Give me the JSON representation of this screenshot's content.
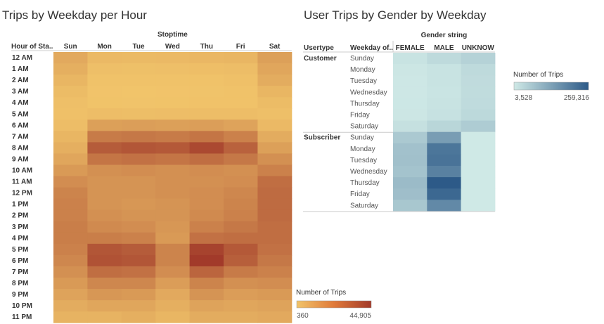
{
  "chart_data": [
    {
      "type": "heatmap",
      "title": "Trips by Weekday per Hour",
      "column_header": "Stoptime",
      "row_header": "Hour of Sta..",
      "columns": [
        "Sun",
        "Mon",
        "Tue",
        "Wed",
        "Thu",
        "Fri",
        "Sat"
      ],
      "rows": [
        "12 AM",
        "1 AM",
        "2 AM",
        "3 AM",
        "4 AM",
        "5 AM",
        "6 AM",
        "7 AM",
        "8 AM",
        "9 AM",
        "10 AM",
        "11 AM",
        "12 PM",
        "1 PM",
        "2 PM",
        "3 PM",
        "4 PM",
        "5 PM",
        "6 PM",
        "7 PM",
        "8 PM",
        "9 PM",
        "10 PM",
        "11 PM"
      ],
      "values": [
        [
          9000,
          4000,
          3500,
          4000,
          4500,
          5000,
          12000
        ],
        [
          7000,
          2000,
          1800,
          2000,
          2200,
          2500,
          10000
        ],
        [
          5000,
          1000,
          900,
          1000,
          1100,
          1500,
          8000
        ],
        [
          3000,
          600,
          500,
          600,
          700,
          900,
          5000
        ],
        [
          2000,
          800,
          700,
          800,
          900,
          1000,
          3000
        ],
        [
          1500,
          2500,
          2400,
          2500,
          2600,
          2500,
          2000
        ],
        [
          2500,
          12000,
          12500,
          12000,
          12500,
          11000,
          4000
        ],
        [
          5000,
          24000,
          25000,
          24000,
          26000,
          22000,
          8000
        ],
        [
          7000,
          34000,
          36000,
          35000,
          40000,
          32000,
          12000
        ],
        [
          10000,
          26000,
          27000,
          26000,
          28000,
          25000,
          17000
        ],
        [
          14000,
          17000,
          18000,
          17000,
          18000,
          17000,
          22000
        ],
        [
          18000,
          16000,
          16000,
          17000,
          17000,
          18000,
          28000
        ],
        [
          21000,
          16000,
          16000,
          17000,
          18000,
          20000,
          29000
        ],
        [
          22000,
          16000,
          15000,
          16000,
          18000,
          21000,
          29000
        ],
        [
          22000,
          17000,
          16000,
          16000,
          19000,
          22000,
          29000
        ],
        [
          23000,
          19000,
          18000,
          15000,
          22000,
          25000,
          28000
        ],
        [
          23000,
          23000,
          22000,
          14000,
          27000,
          28000,
          28000
        ],
        [
          22000,
          36000,
          34000,
          21000,
          42000,
          35000,
          27000
        ],
        [
          20000,
          37000,
          36000,
          21000,
          44905,
          33000,
          25000
        ],
        [
          17000,
          28000,
          27000,
          18000,
          31000,
          24000,
          22000
        ],
        [
          14000,
          20000,
          20000,
          13000,
          21000,
          17000,
          18000
        ],
        [
          11000,
          15000,
          14000,
          9000,
          16000,
          13000,
          14000
        ],
        [
          8000,
          10000,
          10000,
          7000,
          11000,
          10000,
          11000
        ],
        [
          6000,
          6000,
          7000,
          5000,
          8000,
          8000,
          9000
        ]
      ],
      "color_range": {
        "min": 360,
        "max": 44905,
        "min_label": "360",
        "max_label": "44,905",
        "low_color": "#f1c46a",
        "high_color": "#a23a2a"
      },
      "legend_title": "Number of Trips"
    },
    {
      "type": "heatmap",
      "title": "User Trips by Gender by Weekday",
      "column_header": "Gender string",
      "row_headers": [
        "Usertype",
        "Weekday of.."
      ],
      "columns": [
        "FEMALE",
        "MALE",
        "UNKNOW"
      ],
      "groups": [
        {
          "usertype": "Customer",
          "weekdays": [
            "Sunday",
            "Monday",
            "Tuesday",
            "Wednesday",
            "Thursday",
            "Friday",
            "Saturday"
          ],
          "values": [
            [
              15000,
              30000,
              45000
            ],
            [
              8000,
              15000,
              30000
            ],
            [
              7000,
              14000,
              28000
            ],
            [
              7000,
              13000,
              27000
            ],
            [
              7500,
              15000,
              29000
            ],
            [
              9000,
              18000,
              33000
            ],
            [
              20000,
              38000,
              55000
            ]
          ]
        },
        {
          "usertype": "Subscriber",
          "weekdays": [
            "Sunday",
            "Monday",
            "Tuesday",
            "Wednesday",
            "Thursday",
            "Friday",
            "Saturday"
          ],
          "values": [
            [
              60000,
              140000,
              3528
            ],
            [
              75000,
              210000,
              3800
            ],
            [
              76000,
              215000,
              3700
            ],
            [
              72000,
              190000,
              3600
            ],
            [
              85000,
              259316,
              3900
            ],
            [
              80000,
              235000,
              3700
            ],
            [
              65000,
              175000,
              3550
            ]
          ]
        }
      ],
      "color_range": {
        "min": 3528,
        "max": 259316,
        "min_label": "3,528",
        "max_label": "259,316",
        "low_color": "#cfe9e6",
        "high_color": "#2d5a88"
      },
      "legend_title": "Number of Trips"
    }
  ]
}
